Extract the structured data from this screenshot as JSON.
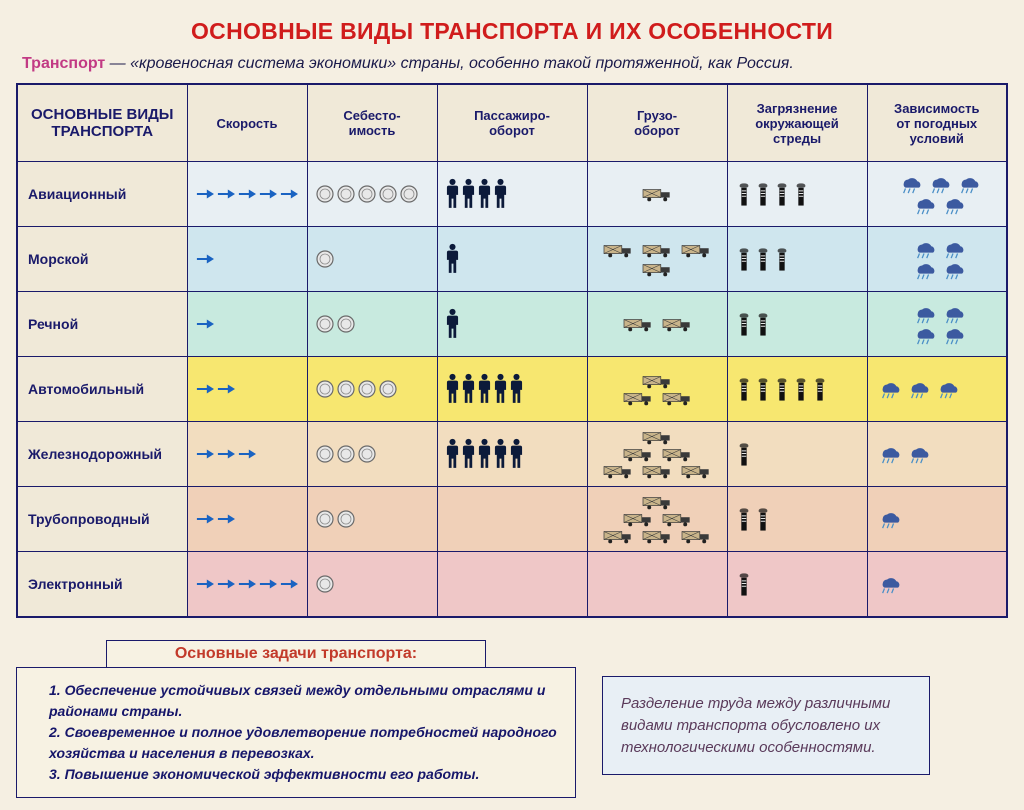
{
  "title": "ОСНОВНЫЕ ВИДЫ ТРАНСПОРТА И ИХ ОСОБЕННОСТИ",
  "title_color": "#d01c1c",
  "subtitle_strong": "Транспорт",
  "subtitle_strong_color": "#c23a84",
  "subtitle_rest": " — «кровеносная система экономики» страны, особенно такой протяженной, как Россия.",
  "table": {
    "header_bg": "#f0e9d8",
    "border_color": "#1a1a6a",
    "columns": [
      "ОСНОВНЫЕ ВИДЫ ТРАНСПОРТА",
      "Скорость",
      "Себесто-имость",
      "Пассажиро-оборот",
      "Грузо-оборот",
      "Загрязнение окружающей стреды",
      "Зависимость от погодных условий"
    ],
    "rows": [
      {
        "name": "Авиационный",
        "bg": "#e8eff3",
        "speed": 5,
        "cost": 5,
        "passengers": 4,
        "cargo": 1,
        "cargo_stack": false,
        "pollution": 4,
        "weather": 5
      },
      {
        "name": "Морской",
        "bg": "#cfe6ee",
        "speed": 1,
        "cost": 1,
        "passengers": 1,
        "cargo": 4,
        "cargo_stack": false,
        "pollution": 3,
        "weather": 4
      },
      {
        "name": "Речной",
        "bg": "#c8eadf",
        "speed": 1,
        "cost": 2,
        "passengers": 1,
        "cargo": 2,
        "cargo_stack": false,
        "pollution": 2,
        "weather": 4
      },
      {
        "name": "Автомобильный",
        "bg": "#f7e770",
        "speed": 2,
        "cost": 4,
        "passengers": 5,
        "cargo": 3,
        "cargo_stack": true,
        "pollution": 5,
        "weather": 3
      },
      {
        "name": "Железнодорожный",
        "bg": "#f2ddbf",
        "speed": 3,
        "cost": 3,
        "passengers": 5,
        "cargo": 6,
        "cargo_stack": true,
        "pollution": 1,
        "weather": 2
      },
      {
        "name": "Трубопроводный",
        "bg": "#f0d0b8",
        "speed": 2,
        "cost": 2,
        "passengers": 0,
        "cargo": 6,
        "cargo_stack": true,
        "pollution": 2,
        "weather": 1
      },
      {
        "name": "Электронный",
        "bg": "#efc7c7",
        "speed": 5,
        "cost": 1,
        "passengers": 0,
        "cargo": 0,
        "cargo_stack": false,
        "pollution": 1,
        "weather": 1
      }
    ]
  },
  "icons": {
    "arrow_color": "#1a63c2",
    "coin_color": "#cfcfcf",
    "coin_edge": "#6a6a6a",
    "person_color": "#0c1a3a",
    "truck_body": "#c9b48a",
    "truck_dark": "#3a3a3a",
    "factory_color": "#111111",
    "cloud_color": "#3c5aa0",
    "rain_color": "#4a8fc7"
  },
  "tasks_title": "Основные задачи транспорта:",
  "tasks_title_color": "#c23a2a",
  "tasks": [
    "Обеспечение устойчивых связей между отдельными отраслями и районами страны.",
    "Своевременное и полное удовлетворение потребностей народного хозяйства и населения в перевозках.",
    "Повышение экономической эффективности его работы."
  ],
  "tasks_text_color": "#16166a",
  "note": "Разделение труда между различными видами транспорта обусловлено их технологическими особенностями.",
  "note_bg": "#e8eff5"
}
